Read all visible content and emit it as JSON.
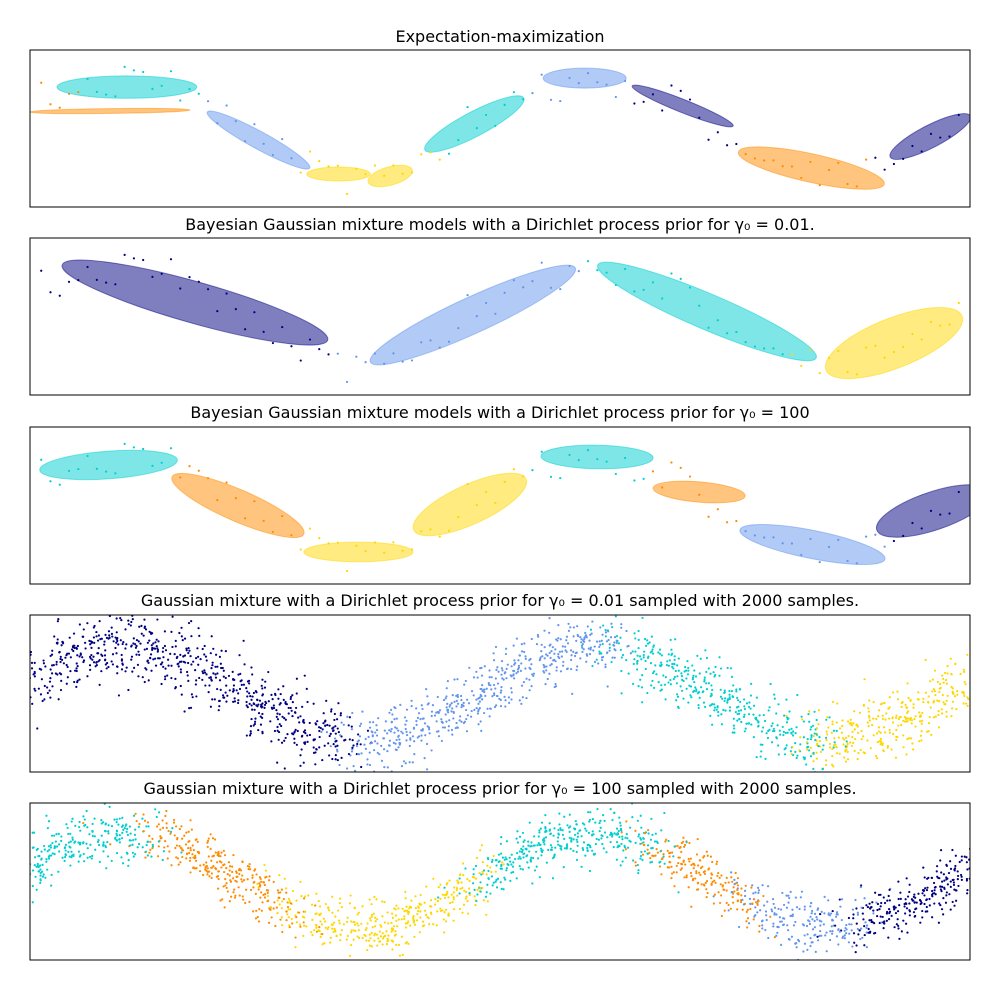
{
  "chart_data": [
    {
      "type": "scatter",
      "title": "Expectation-maximization",
      "xlim": [
        -6,
        6.566
      ],
      "ylim": [
        -5,
        5
      ],
      "grid": false,
      "points": {
        "n": 100,
        "seed": 7,
        "noise": 0.2,
        "kind": "sine"
      },
      "ellipses": [
        {
          "color": "#00ced1",
          "p1": [
            -5.64,
            2.64
          ],
          "p2": [
            -3.77,
            2.64
          ],
          "aspect": 0.16
        },
        {
          "color": "#ff8c00",
          "p1": [
            -6.0,
            1.05
          ],
          "p2": [
            -3.86,
            1.18
          ],
          "aspect": 0.03
        },
        {
          "color": "#6495ed",
          "p1": [
            -3.63,
            1.05
          ],
          "p2": [
            -2.26,
            -2.52
          ],
          "aspect": 0.15
        },
        {
          "color": "#ffd700",
          "p1": [
            -2.3,
            -2.9
          ],
          "p2": [
            -1.45,
            -2.9
          ],
          "aspect": 0.22
        },
        {
          "color": "#ffd700",
          "p1": [
            -1.48,
            -3.41
          ],
          "p2": [
            -0.89,
            -2.64
          ],
          "aspect": 0.4
        },
        {
          "color": "#00ced1",
          "p1": [
            -0.72,
            -1.37
          ],
          "p2": [
            0.6,
            1.94
          ],
          "aspect": 0.22
        },
        {
          "color": "#6495ed",
          "p1": [
            0.86,
            3.21
          ],
          "p2": [
            1.97,
            3.21
          ],
          "aspect": 0.24
        },
        {
          "color": "#000080",
          "p1": [
            2.05,
            2.71
          ],
          "p2": [
            3.4,
            0.16
          ],
          "aspect": 0.12
        },
        {
          "color": "#ff8c00",
          "p1": [
            3.47,
            -1.5
          ],
          "p2": [
            5.42,
            -3.54
          ],
          "aspect": 0.19
        },
        {
          "color": "#000080",
          "p1": [
            5.5,
            -1.82
          ],
          "p2": [
            6.57,
            0.8
          ],
          "aspect": 0.25
        }
      ]
    },
    {
      "type": "scatter",
      "title": "Bayesian Gaussian mixture models with a Dirichlet process prior for γ₀ = 0.01.",
      "xlim": [
        -6,
        6.566
      ],
      "ylim": [
        -5,
        5
      ],
      "grid": false,
      "points": {
        "n": 100,
        "seed": 7,
        "noise": 0.2,
        "kind": "sine"
      },
      "ellipses": [
        {
          "color": "#000080",
          "p1": [
            -5.57,
            3.28
          ],
          "p2": [
            -2.02,
            -1.5
          ],
          "aspect": 0.15
        },
        {
          "color": "#6495ed",
          "p1": [
            -1.45,
            -2.9
          ],
          "p2": [
            1.29,
            3.09
          ],
          "aspect": 0.16
        },
        {
          "color": "#00ced1",
          "p1": [
            1.59,
            3.28
          ],
          "p2": [
            4.51,
            -2.64
          ],
          "aspect": 0.15
        },
        {
          "color": "#ffd700",
          "p1": [
            4.64,
            -3.41
          ],
          "p2": [
            6.46,
            0.03
          ],
          "aspect": 0.34
        }
      ]
    },
    {
      "type": "scatter",
      "title": "Bayesian Gaussian mixture models with a Dirichlet process prior for γ₀ = 100",
      "xlim": [
        -6,
        6.566
      ],
      "ylim": [
        -5,
        5
      ],
      "grid": false,
      "points": {
        "n": 100,
        "seed": 7,
        "noise": 0.2,
        "kind": "sine"
      },
      "ellipses": [
        {
          "color": "#00ced1",
          "p1": [
            -5.87,
            2.26
          ],
          "p2": [
            -4.03,
            2.9
          ],
          "aspect": 0.2
        },
        {
          "color": "#ff8c00",
          "p1": [
            -4.1,
            1.82
          ],
          "p2": [
            -2.34,
            -1.82
          ],
          "aspect": 0.22
        },
        {
          "color": "#ffd700",
          "p1": [
            -2.34,
            -2.96
          ],
          "p2": [
            -0.88,
            -2.96
          ],
          "aspect": 0.18
        },
        {
          "color": "#ffd700",
          "p1": [
            -0.87,
            -1.56
          ],
          "p2": [
            0.63,
            1.69
          ],
          "aspect": 0.32
        },
        {
          "color": "#00ced1",
          "p1": [
            0.83,
            3.15
          ],
          "p2": [
            2.33,
            3.03
          ],
          "aspect": 0.21
        },
        {
          "color": "#ff8c00",
          "p1": [
            2.33,
            1.11
          ],
          "p2": [
            3.56,
            0.61
          ],
          "aspect": 0.22
        },
        {
          "color": "#6495ed",
          "p1": [
            3.49,
            -1.56
          ],
          "p2": [
            5.43,
            -3.41
          ],
          "aspect": 0.19
        },
        {
          "color": "#000080",
          "p1": [
            5.32,
            -1.56
          ],
          "p2": [
            6.83,
            0.86
          ],
          "aspect": 0.32
        }
      ]
    },
    {
      "type": "scatter",
      "title": "Gaussian mixture with a Dirichlet process prior for γ₀ = 0.01 sampled with 2000 samples.",
      "xlim": [
        -6,
        6.566
      ],
      "ylim": [
        -5,
        5
      ],
      "grid": false,
      "points": {
        "n": 2000,
        "seed": 11,
        "noise": 0.75,
        "kind": "sampled"
      },
      "segments": [
        {
          "until": -1.7,
          "color": "#000080"
        },
        {
          "until": 1.85,
          "color": "#6495ed"
        },
        {
          "until": 4.5,
          "color": "#00ced1"
        },
        {
          "until": 99,
          "color": "#ffd700"
        }
      ],
      "ellipses": []
    },
    {
      "type": "scatter",
      "title": "Gaussian mixture with a Dirichlet process prior for γ₀ = 100 sampled with 2000 samples.",
      "xlim": [
        -6,
        6.566
      ],
      "ylim": [
        -5,
        5
      ],
      "grid": false,
      "points": {
        "n": 2000,
        "seed": 23,
        "noise": 0.6,
        "kind": "sampled"
      },
      "segments": [
        {
          "until": -4.4,
          "color": "#00ced1"
        },
        {
          "until": -2.5,
          "color": "#ff8c00"
        },
        {
          "until": 0.0,
          "color": "#ffd700"
        },
        {
          "until": 2.3,
          "color": "#00ced1"
        },
        {
          "until": 3.6,
          "color": "#ff8c00"
        },
        {
          "until": 5.1,
          "color": "#6495ed"
        },
        {
          "until": 99,
          "color": "#000080"
        }
      ],
      "ellipses": []
    }
  ]
}
